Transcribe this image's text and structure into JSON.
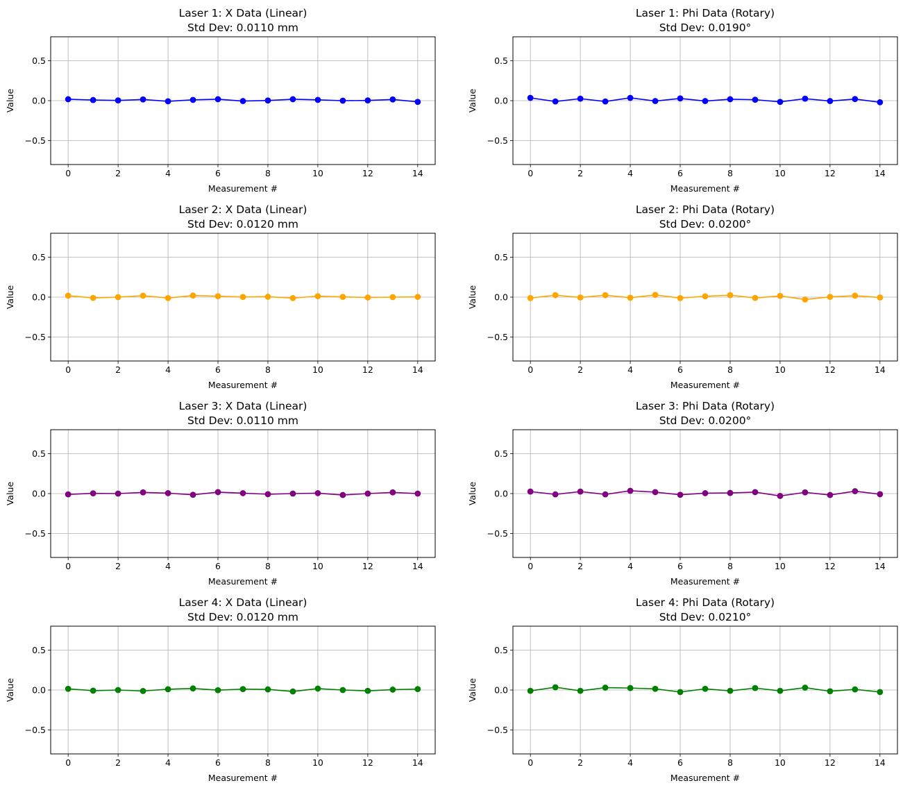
{
  "chart_data": [
    {
      "type": "line",
      "title_line1": "Laser 1: X Data (Linear)",
      "title_line2": "Std Dev: 0.0110 mm",
      "xlabel": "Measurement #",
      "ylabel": "Value",
      "color": "#0000ff",
      "xlim": [
        -0.7,
        14.7
      ],
      "ylim": [
        -0.8,
        0.8
      ],
      "xticks": [
        0,
        2,
        4,
        6,
        8,
        10,
        12,
        14
      ],
      "yticks": [
        -0.5,
        0.0,
        0.5
      ],
      "ytick_labels": [
        "−0.5",
        "0.0",
        "0.5"
      ],
      "grid": true,
      "x": [
        0,
        1,
        2,
        3,
        4,
        5,
        6,
        7,
        8,
        9,
        10,
        11,
        12,
        13,
        14
      ],
      "y": [
        0.018,
        0.008,
        0.003,
        0.015,
        -0.008,
        0.01,
        0.018,
        -0.005,
        0.002,
        0.018,
        0.01,
        0.0,
        0.003,
        0.015,
        -0.015
      ]
    },
    {
      "type": "line",
      "title_line1": "Laser 1: Phi Data (Rotary)",
      "title_line2": "Std Dev: 0.0190°",
      "xlabel": "Measurement #",
      "ylabel": "Value",
      "color": "#0000ff",
      "xlim": [
        -0.7,
        14.7
      ],
      "ylim": [
        -0.8,
        0.8
      ],
      "xticks": [
        0,
        2,
        4,
        6,
        8,
        10,
        12,
        14
      ],
      "yticks": [
        -0.5,
        0.0,
        0.5
      ],
      "ytick_labels": [
        "−0.5",
        "0.0",
        "0.5"
      ],
      "grid": true,
      "x": [
        0,
        1,
        2,
        3,
        4,
        5,
        6,
        7,
        8,
        9,
        10,
        11,
        12,
        13,
        14
      ],
      "y": [
        0.035,
        -0.01,
        0.025,
        -0.01,
        0.035,
        -0.005,
        0.028,
        -0.005,
        0.018,
        0.012,
        -0.015,
        0.025,
        -0.005,
        0.02,
        -0.02
      ]
    },
    {
      "type": "line",
      "title_line1": "Laser 2: X Data (Linear)",
      "title_line2": "Std Dev: 0.0120 mm",
      "xlabel": "Measurement #",
      "ylabel": "Value",
      "color": "#ffa500",
      "xlim": [
        -0.7,
        14.7
      ],
      "ylim": [
        -0.8,
        0.8
      ],
      "xticks": [
        0,
        2,
        4,
        6,
        8,
        10,
        12,
        14
      ],
      "yticks": [
        -0.5,
        0.0,
        0.5
      ],
      "ytick_labels": [
        "−0.5",
        "0.0",
        "0.5"
      ],
      "grid": true,
      "x": [
        0,
        1,
        2,
        3,
        4,
        5,
        6,
        7,
        8,
        9,
        10,
        11,
        12,
        13,
        14
      ],
      "y": [
        0.018,
        -0.01,
        0.0,
        0.018,
        -0.012,
        0.02,
        0.012,
        0.002,
        0.005,
        -0.012,
        0.012,
        0.003,
        -0.005,
        0.0,
        0.003
      ]
    },
    {
      "type": "line",
      "title_line1": "Laser 2: Phi Data (Rotary)",
      "title_line2": "Std Dev: 0.0200°",
      "xlabel": "Measurement #",
      "ylabel": "Value",
      "color": "#ffa500",
      "xlim": [
        -0.7,
        14.7
      ],
      "ylim": [
        -0.8,
        0.8
      ],
      "xticks": [
        0,
        2,
        4,
        6,
        8,
        10,
        12,
        14
      ],
      "yticks": [
        -0.5,
        0.0,
        0.5
      ],
      "ytick_labels": [
        "−0.5",
        "0.0",
        "0.5"
      ],
      "grid": true,
      "x": [
        0,
        1,
        2,
        3,
        4,
        5,
        6,
        7,
        8,
        9,
        10,
        11,
        12,
        13,
        14
      ],
      "y": [
        -0.012,
        0.025,
        -0.005,
        0.025,
        -0.008,
        0.028,
        -0.012,
        0.01,
        0.025,
        -0.01,
        0.015,
        -0.03,
        0.003,
        0.018,
        -0.005
      ]
    },
    {
      "type": "line",
      "title_line1": "Laser 3: X Data (Linear)",
      "title_line2": "Std Dev: 0.0110 mm",
      "xlabel": "Measurement #",
      "ylabel": "Value",
      "color": "#800080",
      "xlim": [
        -0.7,
        14.7
      ],
      "ylim": [
        -0.8,
        0.8
      ],
      "xticks": [
        0,
        2,
        4,
        6,
        8,
        10,
        12,
        14
      ],
      "yticks": [
        -0.5,
        0.0,
        0.5
      ],
      "ytick_labels": [
        "−0.5",
        "0.0",
        "0.5"
      ],
      "grid": true,
      "x": [
        0,
        1,
        2,
        3,
        4,
        5,
        6,
        7,
        8,
        9,
        10,
        11,
        12,
        13,
        14
      ],
      "y": [
        -0.01,
        0.003,
        0.0,
        0.015,
        0.005,
        -0.015,
        0.018,
        0.005,
        -0.008,
        0.0,
        0.005,
        -0.018,
        0.0,
        0.015,
        0.0
      ]
    },
    {
      "type": "line",
      "title_line1": "Laser 3: Phi Data (Rotary)",
      "title_line2": "Std Dev: 0.0200°",
      "xlabel": "Measurement #",
      "ylabel": "Value",
      "color": "#800080",
      "xlim": [
        -0.7,
        14.7
      ],
      "ylim": [
        -0.8,
        0.8
      ],
      "xticks": [
        0,
        2,
        4,
        6,
        8,
        10,
        12,
        14
      ],
      "yticks": [
        -0.5,
        0.0,
        0.5
      ],
      "ytick_labels": [
        "−0.5",
        "0.0",
        "0.5"
      ],
      "grid": true,
      "x": [
        0,
        1,
        2,
        3,
        4,
        5,
        6,
        7,
        8,
        9,
        10,
        11,
        12,
        13,
        14
      ],
      "y": [
        0.025,
        -0.01,
        0.025,
        -0.01,
        0.035,
        0.018,
        -0.015,
        0.005,
        0.008,
        0.018,
        -0.03,
        0.015,
        -0.018,
        0.03,
        -0.008
      ]
    },
    {
      "type": "line",
      "title_line1": "Laser 4: X Data (Linear)",
      "title_line2": "Std Dev: 0.0120 mm",
      "xlabel": "Measurement #",
      "ylabel": "Value",
      "color": "#008000",
      "xlim": [
        -0.7,
        14.7
      ],
      "ylim": [
        -0.8,
        0.8
      ],
      "xticks": [
        0,
        2,
        4,
        6,
        8,
        10,
        12,
        14
      ],
      "yticks": [
        -0.5,
        0.0,
        0.5
      ],
      "ytick_labels": [
        "−0.5",
        "0.0",
        "0.5"
      ],
      "grid": true,
      "x": [
        0,
        1,
        2,
        3,
        4,
        5,
        6,
        7,
        8,
        9,
        10,
        11,
        12,
        13,
        14
      ],
      "y": [
        0.015,
        -0.008,
        0.0,
        -0.012,
        0.01,
        0.02,
        -0.002,
        0.012,
        0.008,
        -0.018,
        0.018,
        0.0,
        -0.01,
        0.005,
        0.012
      ]
    },
    {
      "type": "line",
      "title_line1": "Laser 4: Phi Data (Rotary)",
      "title_line2": "Std Dev: 0.0210°",
      "xlabel": "Measurement #",
      "ylabel": "Value",
      "color": "#008000",
      "xlim": [
        -0.7,
        14.7
      ],
      "ylim": [
        -0.8,
        0.8
      ],
      "xticks": [
        0,
        2,
        4,
        6,
        8,
        10,
        12,
        14
      ],
      "yticks": [
        -0.5,
        0.0,
        0.5
      ],
      "ytick_labels": [
        "−0.5",
        "0.0",
        "0.5"
      ],
      "grid": true,
      "x": [
        0,
        1,
        2,
        3,
        4,
        5,
        6,
        7,
        8,
        9,
        10,
        11,
        12,
        13,
        14
      ],
      "y": [
        -0.01,
        0.035,
        -0.01,
        0.03,
        0.025,
        0.015,
        -0.025,
        0.015,
        -0.01,
        0.025,
        -0.01,
        0.03,
        -0.015,
        0.008,
        -0.025
      ]
    }
  ]
}
